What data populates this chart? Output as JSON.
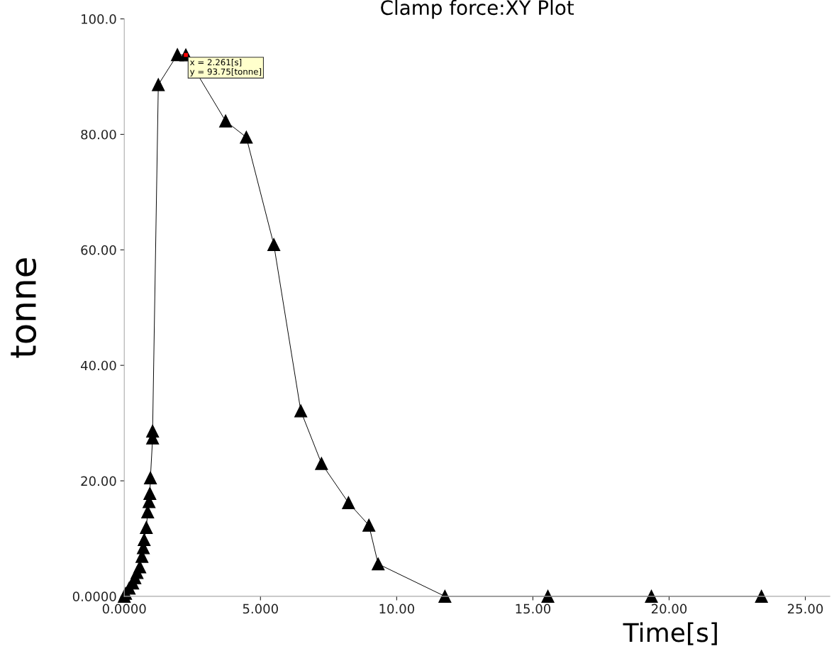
{
  "chart_data": {
    "type": "line",
    "title": "Clamp force:XY Plot",
    "xlabel": "Time[s]",
    "ylabel": "tonne",
    "series": [
      {
        "color": "#000000",
        "x": [
          0,
          0.05,
          0.18,
          0.31,
          0.39,
          0.47,
          0.57,
          0.65,
          0.7,
          0.73,
          0.81,
          0.86,
          0.91,
          0.94,
          0.96,
          1.04,
          1.04,
          1.25,
          1.95,
          2.261,
          3.72,
          4.48,
          5.49,
          6.48,
          7.24,
          8.23,
          8.98,
          9.32,
          11.77,
          15.55,
          19.35,
          23.39
        ],
        "values": [
          0,
          0.5,
          1.4,
          2.3,
          3.2,
          4.1,
          5.1,
          6.9,
          8.4,
          9.8,
          11.9,
          14.6,
          16.4,
          17.8,
          20.5,
          27.4,
          28.6,
          88.6,
          93.8,
          93.75,
          82.3,
          79.5,
          60.9,
          32.1,
          23.0,
          16.2,
          12.3,
          5.6,
          0,
          0,
          0,
          0
        ]
      }
    ],
    "marker": "triangle",
    "line_style": "solid",
    "grid": false,
    "legend": false,
    "xlim": [
      0,
      25.9
    ],
    "ylim": [
      0,
      100
    ],
    "xticks": [
      {
        "value": 0,
        "label": "0.0000"
      },
      {
        "value": 5,
        "label": "5.000"
      },
      {
        "value": 10,
        "label": "10.00"
      },
      {
        "value": 15,
        "label": "15.00"
      },
      {
        "value": 20,
        "label": "20.00"
      },
      {
        "value": 25,
        "label": "25.00"
      }
    ],
    "yticks": [
      {
        "value": 0,
        "label": "0.0000"
      },
      {
        "value": 20,
        "label": "20.00"
      },
      {
        "value": 40,
        "label": "40.00"
      },
      {
        "value": 60,
        "label": "60.00"
      },
      {
        "value": 80,
        "label": "80.00"
      },
      {
        "value": 100,
        "label": "100.0"
      }
    ],
    "annotations": [
      {
        "text": "x = 2.261[s]\ny = 93.75[tonne]",
        "x": 2.261,
        "y": 93.75
      }
    ]
  }
}
